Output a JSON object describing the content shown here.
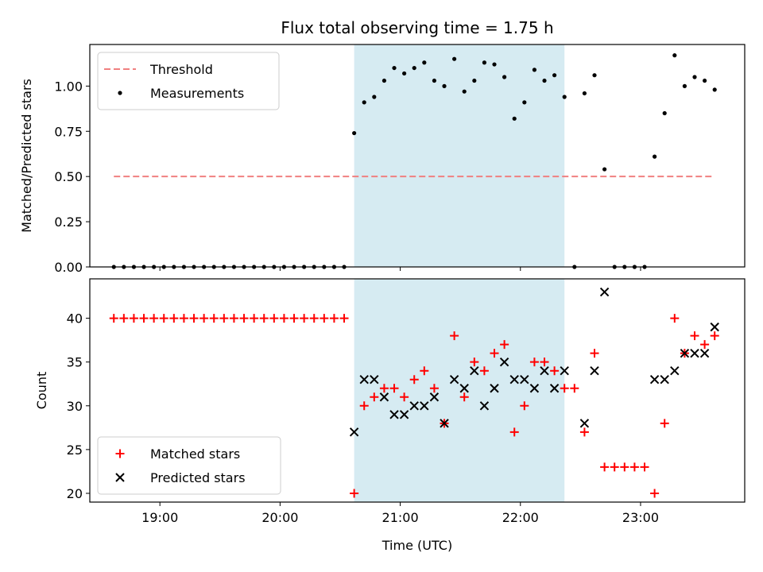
{
  "chart_data": {
    "title": "Flux total observing time = 1.75 h",
    "xlabel": "Time (UTC)",
    "x_ticks": [
      "19:00",
      "20:00",
      "21:00",
      "22:00",
      "23:00"
    ],
    "x_range": [
      "18:25",
      "23:52"
    ],
    "shaded_span": {
      "start": "20:37",
      "end": "22:22",
      "color": "#add8e6"
    },
    "panels": [
      {
        "type": "scatter",
        "ylabel": "Matched/Predicted stars",
        "ylim": [
          0,
          1.23
        ],
        "y_ticks": [
          "0.00",
          "0.25",
          "0.50",
          "0.75",
          "1.00"
        ],
        "legend": "upper-left",
        "threshold": {
          "name": "Threshold",
          "value": 0.5,
          "x": [
            "18:37",
            "23:37"
          ],
          "color": "#f08080"
        },
        "series": [
          {
            "name": "Measurements",
            "marker": "dot",
            "color": "#000000",
            "x": [
              "18:37",
              "18:42",
              "18:47",
              "18:52",
              "18:57",
              "19:02",
              "19:07",
              "19:12",
              "19:17",
              "19:22",
              "19:27",
              "19:32",
              "19:37",
              "19:42",
              "19:47",
              "19:52",
              "19:57",
              "20:02",
              "20:07",
              "20:12",
              "20:17",
              "20:22",
              "20:27",
              "20:32",
              "20:37",
              "20:42",
              "20:47",
              "20:52",
              "20:57",
              "21:02",
              "21:07",
              "21:12",
              "21:17",
              "21:22",
              "21:27",
              "21:32",
              "21:37",
              "21:42",
              "21:47",
              "21:52",
              "21:57",
              "22:02",
              "22:07",
              "22:12",
              "22:17",
              "22:22",
              "22:27",
              "22:32",
              "22:37",
              "22:42",
              "22:47",
              "22:52",
              "22:57",
              "23:02",
              "23:07",
              "23:12",
              "23:17",
              "23:22",
              "23:27",
              "23:32",
              "23:37"
            ],
            "y": [
              0,
              0,
              0,
              0,
              0,
              0,
              0,
              0,
              0,
              0,
              0,
              0,
              0,
              0,
              0,
              0,
              0,
              0,
              0,
              0,
              0,
              0,
              0,
              0,
              0.74,
              0.91,
              0.94,
              1.03,
              1.1,
              1.07,
              1.1,
              1.13,
              1.03,
              1.0,
              1.15,
              0.97,
              1.03,
              1.13,
              1.12,
              1.05,
              0.82,
              0.91,
              1.09,
              1.03,
              1.06,
              0.94,
              0,
              0.96,
              1.06,
              0.54,
              0,
              0,
              0,
              0,
              0.61,
              0.85,
              1.17,
              1.0,
              1.05,
              1.03,
              0.98
            ]
          }
        ]
      },
      {
        "type": "scatter",
        "ylabel": "Count",
        "ylim": [
          19,
          44.5
        ],
        "y_ticks": [
          "20",
          "25",
          "30",
          "35",
          "40"
        ],
        "legend": "lower-left",
        "series": [
          {
            "name": "Matched stars",
            "marker": "plus",
            "color": "#ff0000",
            "x": [
              "18:37",
              "18:42",
              "18:47",
              "18:52",
              "18:57",
              "19:02",
              "19:07",
              "19:12",
              "19:17",
              "19:22",
              "19:27",
              "19:32",
              "19:37",
              "19:42",
              "19:47",
              "19:52",
              "19:57",
              "20:02",
              "20:07",
              "20:12",
              "20:17",
              "20:22",
              "20:27",
              "20:32",
              "20:37",
              "20:42",
              "20:47",
              "20:52",
              "20:57",
              "21:02",
              "21:07",
              "21:12",
              "21:17",
              "21:22",
              "21:27",
              "21:32",
              "21:37",
              "21:42",
              "21:47",
              "21:52",
              "21:57",
              "22:02",
              "22:07",
              "22:12",
              "22:17",
              "22:22",
              "22:27",
              "22:32",
              "22:37",
              "22:42",
              "22:47",
              "22:52",
              "22:57",
              "23:02",
              "23:07",
              "23:12",
              "23:17",
              "23:22",
              "23:27",
              "23:32",
              "23:37"
            ],
            "y": [
              40,
              40,
              40,
              40,
              40,
              40,
              40,
              40,
              40,
              40,
              40,
              40,
              40,
              40,
              40,
              40,
              40,
              40,
              40,
              40,
              40,
              40,
              40,
              40,
              20,
              30,
              31,
              32,
              32,
              31,
              33,
              34,
              32,
              28,
              38,
              31,
              35,
              34,
              36,
              37,
              27,
              30,
              35,
              35,
              34,
              32,
              32,
              27,
              36,
              23,
              23,
              23,
              23,
              23,
              20,
              28,
              40,
              36,
              38,
              37,
              38
            ]
          },
          {
            "name": "Predicted stars",
            "marker": "x",
            "color": "#000000",
            "x": [
              "20:37",
              "20:42",
              "20:47",
              "20:52",
              "20:57",
              "21:02",
              "21:07",
              "21:12",
              "21:17",
              "21:22",
              "21:27",
              "21:32",
              "21:37",
              "21:42",
              "21:47",
              "21:52",
              "21:57",
              "22:02",
              "22:07",
              "22:12",
              "22:17",
              "22:22",
              "22:32",
              "22:37",
              "22:42",
              "23:07",
              "23:12",
              "23:17",
              "23:22",
              "23:27",
              "23:32",
              "23:37"
            ],
            "y": [
              27,
              33,
              33,
              31,
              29,
              29,
              30,
              30,
              31,
              28,
              33,
              32,
              34,
              30,
              32,
              35,
              33,
              33,
              32,
              34,
              32,
              34,
              28,
              34,
              43,
              33,
              33,
              34,
              36,
              36,
              36,
              39
            ]
          }
        ]
      }
    ]
  }
}
